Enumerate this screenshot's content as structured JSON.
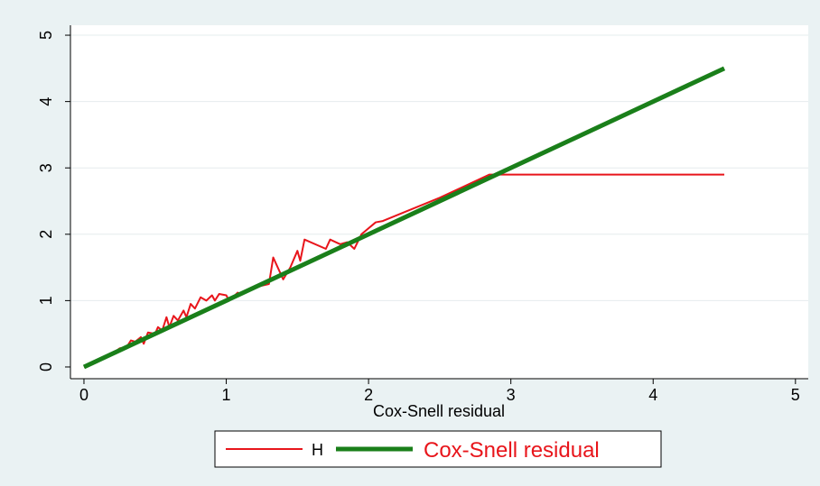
{
  "chart_data": {
    "type": "line",
    "x_label": "Cox-Snell residual",
    "xlim": [
      -0.095,
      5.09
    ],
    "ylim": [
      -0.177,
      5.15
    ],
    "xticks": [
      0,
      1,
      2,
      3,
      4,
      5
    ],
    "yticks": [
      0,
      1,
      2,
      3,
      4,
      5
    ],
    "grid": true,
    "legend": "bottom",
    "series": [
      {
        "name": "H",
        "color": "#e8151b",
        "x": [
          0,
          0.05,
          0.1,
          0.15,
          0.2,
          0.25,
          0.3,
          0.33,
          0.36,
          0.4,
          0.42,
          0.45,
          0.5,
          0.52,
          0.55,
          0.58,
          0.6,
          0.63,
          0.66,
          0.7,
          0.72,
          0.75,
          0.78,
          0.82,
          0.86,
          0.9,
          0.92,
          0.95,
          1.0,
          1.02,
          1.08,
          1.1,
          1.2,
          1.3,
          1.33,
          1.4,
          1.45,
          1.5,
          1.52,
          1.55,
          1.7,
          1.73,
          1.8,
          1.85,
          1.9,
          1.95,
          2.05,
          2.1,
          2.5,
          2.85,
          4.5
        ],
        "values": [
          0,
          0.03,
          0.08,
          0.15,
          0.2,
          0.28,
          0.3,
          0.4,
          0.38,
          0.45,
          0.35,
          0.52,
          0.5,
          0.6,
          0.55,
          0.75,
          0.6,
          0.77,
          0.7,
          0.85,
          0.75,
          0.95,
          0.88,
          1.05,
          1.0,
          1.08,
          1.0,
          1.1,
          1.08,
          1.0,
          1.12,
          1.1,
          1.2,
          1.25,
          1.65,
          1.32,
          1.5,
          1.75,
          1.6,
          1.92,
          1.78,
          1.92,
          1.85,
          1.88,
          1.78,
          2.0,
          2.18,
          2.2,
          2.55,
          2.9,
          2.9
        ]
      },
      {
        "name": "Cox-Snell residual",
        "color": "#1a7f1a",
        "x": [
          0,
          4.5
        ],
        "values": [
          0,
          4.5
        ]
      }
    ]
  }
}
